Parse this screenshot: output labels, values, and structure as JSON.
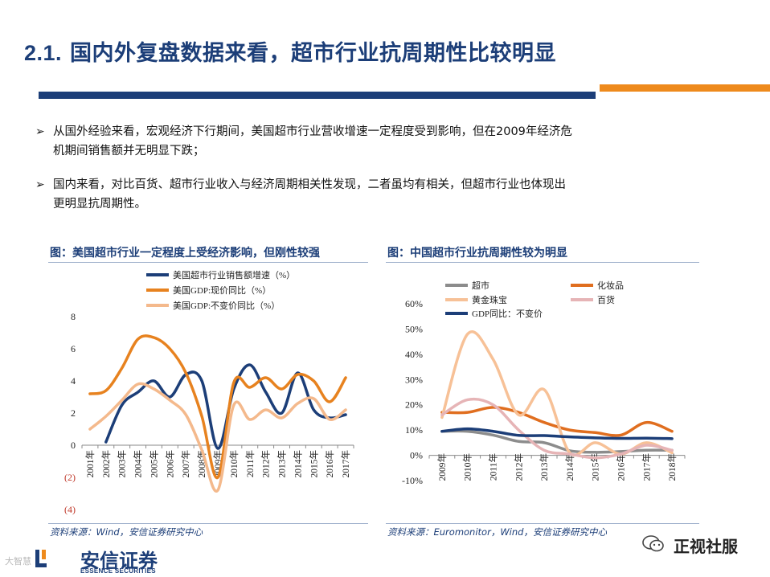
{
  "slide": {
    "title_num": "2.1.",
    "title_text": "国内外复盘数据来看，超市行业抗周期性比较明显"
  },
  "bullets": [
    {
      "line1": "从国外经验来看，宏观经济下行期间，美国超市行业营收增速一定程度受到影响，但在2009年经济危",
      "line2": "机期间销售额并无明显下跌；"
    },
    {
      "line1": "国内来看，对比百货、超市行业收入与经济周期相关性发现，二者虽均有相关，但超市行业也体现出",
      "line2": "更明显抗周期性。"
    }
  ],
  "chart1": {
    "title": "图：美国超市行业一定程度上受经济影响，但刚性较强",
    "source": "资料来源：Wind，安信证券研究中心"
  },
  "chart2": {
    "title": "图：中国超市行业抗周期性较为明显",
    "source": "资料来源：Euromonitor，Wind，安信证券研究中心"
  },
  "footer": {
    "logo_cn": "安信证券",
    "logo_en": "ESSENCE SECURITIES",
    "watermark_left": "大智慧",
    "watermark_right": "正视社服"
  },
  "chart_data": [
    {
      "type": "line",
      "title": "",
      "x": [
        "2001年",
        "2002年",
        "2003年",
        "2004年",
        "2005年",
        "2006年",
        "2007年",
        "2008年",
        "2009年",
        "2010年",
        "2011年",
        "2012年",
        "2013年",
        "2014年",
        "2015年",
        "2016年",
        "2017年"
      ],
      "y_ticks": [
        "8",
        "6",
        "4",
        "2",
        "0",
        "(2)",
        "(4)"
      ],
      "ylim": [
        -4,
        8
      ],
      "legend_position": "top-left",
      "series": [
        {
          "name": "美国超市行业销售额增速（%）",
          "color": "#1c3e78",
          "values": [
            null,
            0.2,
            2.5,
            3.3,
            4.0,
            3.0,
            4.4,
            4.0,
            -0.2,
            3.5,
            5.0,
            3.3,
            2.0,
            4.5,
            2.2,
            1.7,
            1.9
          ]
        },
        {
          "name": "美国GDP:现价同比（%）",
          "color": "#e7821f",
          "values": [
            3.2,
            3.4,
            4.8,
            6.6,
            6.7,
            6.0,
            4.5,
            1.8,
            -2.0,
            3.9,
            3.6,
            4.2,
            3.5,
            4.4,
            4.0,
            2.7,
            4.2
          ]
        },
        {
          "name": "美国GDP:不变价同比（%）",
          "color": "#f4b98c",
          "values": [
            1.0,
            1.8,
            2.8,
            3.8,
            3.5,
            2.8,
            1.9,
            -0.3,
            -2.8,
            2.5,
            1.6,
            2.2,
            1.7,
            2.6,
            2.9,
            1.6,
            2.2
          ]
        }
      ]
    },
    {
      "type": "line",
      "title": "",
      "x": [
        "2009年",
        "2010年",
        "2011年",
        "2012年",
        "2013年",
        "2014年",
        "2015年",
        "2016年",
        "2017年",
        "2018年"
      ],
      "y_ticks": [
        "60%",
        "50%",
        "40%",
        "30%",
        "20%",
        "10%",
        "0%",
        "-10%"
      ],
      "ylim": [
        -10,
        60
      ],
      "legend_position": "top",
      "series": [
        {
          "name": "超市",
          "color": "#8c8c8c",
          "values": [
            9.5,
            9.5,
            8.0,
            5.5,
            5.0,
            1.8,
            1.2,
            1.5,
            2.0,
            2.0
          ]
        },
        {
          "name": "化妆品",
          "color": "#e06e1f",
          "values": [
            17.0,
            17.0,
            19.0,
            17.0,
            13.0,
            10.0,
            9.0,
            8.0,
            13.0,
            9.5
          ]
        },
        {
          "name": "黄金珠宝",
          "color": "#f7c197",
          "values": [
            15.0,
            48.0,
            38.0,
            16.0,
            26.0,
            1.0,
            5.0,
            0.5,
            5.0,
            1.0
          ]
        },
        {
          "name": "百货",
          "color": "#e6b4b6",
          "values": [
            16.0,
            22.0,
            20.0,
            10.0,
            2.0,
            0.5,
            -1.0,
            0.5,
            4.0,
            2.0
          ]
        },
        {
          "name": "GDP同比：不变价",
          "color": "#1c3e78",
          "values": [
            9.5,
            10.5,
            9.5,
            7.9,
            7.8,
            7.3,
            6.9,
            6.7,
            6.8,
            6.6
          ]
        }
      ]
    }
  ]
}
